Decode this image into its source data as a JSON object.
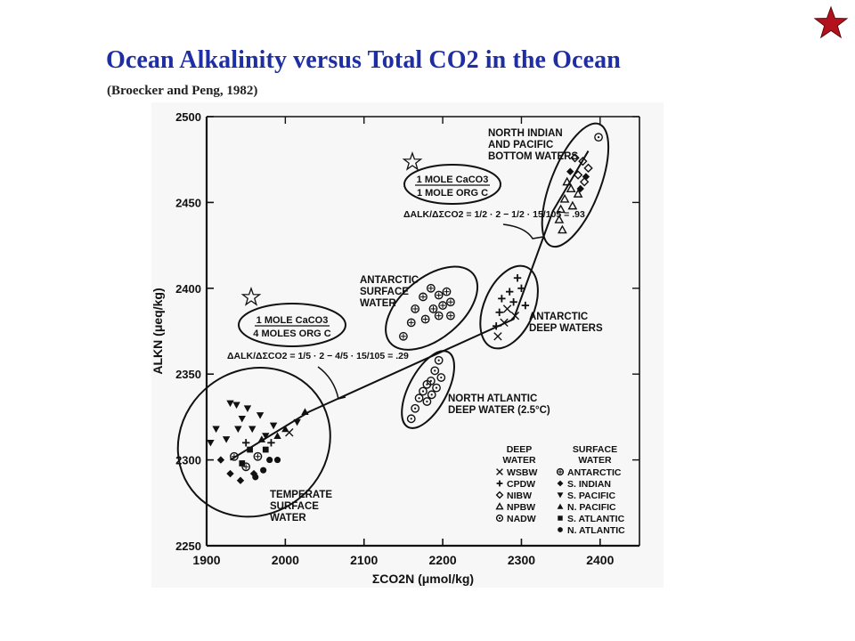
{
  "slide": {
    "title": "Ocean Alkalinity versus Total CO2 in the Ocean",
    "subtitle": "(Broecker and Peng, 1982)",
    "star_color": "#b3121c",
    "title_color": "#1f2fa3"
  },
  "chart_data": {
    "type": "scatter",
    "xlabel": "ΣCO2N (μmol/kg)",
    "ylabel": "ALKN (μeq/kg)",
    "xlim": [
      1900,
      2450
    ],
    "ylim": [
      2250,
      2500
    ],
    "x_ticks": [
      1900,
      2000,
      2100,
      2200,
      2300,
      2400
    ],
    "y_ticks": [
      2250,
      2300,
      2350,
      2400,
      2450,
      2500
    ],
    "trend_line": [
      [
        1930,
        2300
      ],
      [
        2030,
        2328
      ],
      [
        2290,
        2382
      ],
      [
        2340,
        2445
      ],
      [
        2385,
        2480
      ]
    ],
    "groups": [
      {
        "name": "TEMPERATE SURFACE WATER",
        "label_lines": [
          "TEMPERATE",
          "SURFACE",
          "WATER"
        ],
        "points": [
          {
            "x": 1905,
            "y": 2310,
            "s": "S.PACIFIC"
          },
          {
            "x": 1912,
            "y": 2318,
            "s": "S.PACIFIC"
          },
          {
            "x": 1930,
            "y": 2333,
            "s": "S.PACIFIC"
          },
          {
            "x": 1938,
            "y": 2332,
            "s": "S.PACIFIC"
          },
          {
            "x": 1945,
            "y": 2324,
            "s": "S.PACIFIC"
          },
          {
            "x": 1952,
            "y": 2330,
            "s": "S.PACIFIC"
          },
          {
            "x": 1958,
            "y": 2318,
            "s": "S.PACIFIC"
          },
          {
            "x": 1968,
            "y": 2326,
            "s": "S.PACIFIC"
          },
          {
            "x": 1975,
            "y": 2314,
            "s": "S.PACIFIC"
          },
          {
            "x": 1925,
            "y": 2312,
            "s": "S.PACIFIC"
          },
          {
            "x": 1940,
            "y": 2318,
            "s": "S.PACIFIC"
          },
          {
            "x": 1985,
            "y": 2320,
            "s": "S.PACIFIC"
          },
          {
            "x": 2015,
            "y": 2322,
            "s": "S.PACIFIC"
          },
          {
            "x": 1918,
            "y": 2300,
            "s": "S.INDIAN"
          },
          {
            "x": 1930,
            "y": 2292,
            "s": "S.INDIAN"
          },
          {
            "x": 1943,
            "y": 2288,
            "s": "S.INDIAN"
          },
          {
            "x": 1960,
            "y": 2292,
            "s": "S.INDIAN"
          },
          {
            "x": 1950,
            "y": 2296,
            "s": "ANTARCTIC"
          },
          {
            "x": 1965,
            "y": 2302,
            "s": "ANTARCTIC"
          },
          {
            "x": 1935,
            "y": 2302,
            "s": "ANTARCTIC"
          },
          {
            "x": 1980,
            "y": 2300,
            "s": "N.ATLANTIC"
          },
          {
            "x": 1972,
            "y": 2294,
            "s": "N.ATLANTIC"
          },
          {
            "x": 1990,
            "y": 2300,
            "s": "N.ATLANTIC"
          },
          {
            "x": 1962,
            "y": 2290,
            "s": "N.ATLANTIC"
          },
          {
            "x": 1955,
            "y": 2306,
            "s": "S.ATLANTIC"
          },
          {
            "x": 1975,
            "y": 2306,
            "s": "S.ATLANTIC"
          },
          {
            "x": 1945,
            "y": 2298,
            "s": "S.ATLANTIC"
          },
          {
            "x": 1990,
            "y": 2314,
            "s": "N.PACIFIC"
          },
          {
            "x": 2000,
            "y": 2318,
            "s": "N.PACIFIC"
          },
          {
            "x": 2025,
            "y": 2328,
            "s": "N.PACIFIC"
          },
          {
            "x": 1970,
            "y": 2312,
            "s": "N.PACIFIC"
          },
          {
            "x": 1982,
            "y": 2310,
            "s": "CPDW"
          },
          {
            "x": 1950,
            "y": 2310,
            "s": "CPDW"
          },
          {
            "x": 2005,
            "y": 2316,
            "s": "WSBW"
          }
        ]
      },
      {
        "name": "ANTARCTIC SURFACE WATER",
        "label_lines": [
          "ANTARCTIC",
          "SURFACE",
          "WATER"
        ],
        "points": [
          {
            "x": 2175,
            "y": 2395,
            "s": "ANTARCTIC"
          },
          {
            "x": 2185,
            "y": 2400,
            "s": "ANTARCTIC"
          },
          {
            "x": 2195,
            "y": 2396,
            "s": "ANTARCTIC"
          },
          {
            "x": 2205,
            "y": 2398,
            "s": "ANTARCTIC"
          },
          {
            "x": 2200,
            "y": 2390,
            "s": "ANTARCTIC"
          },
          {
            "x": 2188,
            "y": 2388,
            "s": "ANTARCTIC"
          },
          {
            "x": 2210,
            "y": 2392,
            "s": "ANTARCTIC"
          },
          {
            "x": 2165,
            "y": 2388,
            "s": "ANTARCTIC"
          },
          {
            "x": 2195,
            "y": 2384,
            "s": "ANTARCTIC"
          },
          {
            "x": 2160,
            "y": 2380,
            "s": "ANTARCTIC"
          },
          {
            "x": 2178,
            "y": 2382,
            "s": "ANTARCTIC"
          },
          {
            "x": 2210,
            "y": 2384,
            "s": "ANTARCTIC"
          },
          {
            "x": 2150,
            "y": 2372,
            "s": "ANTARCTIC"
          }
        ]
      },
      {
        "name": "NORTH ATLANTIC DEEP WATER (2.5°C)",
        "label_lines": [
          "NORTH ATLANTIC",
          "DEEP WATER (2.5°C)"
        ],
        "points": [
          {
            "x": 2195,
            "y": 2358,
            "s": "NADW"
          },
          {
            "x": 2190,
            "y": 2352,
            "s": "NADW"
          },
          {
            "x": 2198,
            "y": 2348,
            "s": "NADW"
          },
          {
            "x": 2185,
            "y": 2346,
            "s": "NADW"
          },
          {
            "x": 2192,
            "y": 2342,
            "s": "NADW"
          },
          {
            "x": 2180,
            "y": 2344,
            "s": "NADW"
          },
          {
            "x": 2186,
            "y": 2338,
            "s": "NADW"
          },
          {
            "x": 2175,
            "y": 2340,
            "s": "NADW"
          },
          {
            "x": 2180,
            "y": 2334,
            "s": "NADW"
          },
          {
            "x": 2170,
            "y": 2336,
            "s": "NADW"
          },
          {
            "x": 2165,
            "y": 2330,
            "s": "NADW"
          },
          {
            "x": 2160,
            "y": 2324,
            "s": "NADW"
          }
        ]
      },
      {
        "name": "ANTARCTIC DEEP WATERS",
        "label_lines": [
          "ANTARCTIC",
          "DEEP WATERS"
        ],
        "points": [
          {
            "x": 2295,
            "y": 2406,
            "s": "CPDW"
          },
          {
            "x": 2285,
            "y": 2398,
            "s": "CPDW"
          },
          {
            "x": 2300,
            "y": 2400,
            "s": "CPDW"
          },
          {
            "x": 2275,
            "y": 2394,
            "s": "CPDW"
          },
          {
            "x": 2290,
            "y": 2392,
            "s": "CPDW"
          },
          {
            "x": 2305,
            "y": 2390,
            "s": "CPDW"
          },
          {
            "x": 2272,
            "y": 2386,
            "s": "CPDW"
          },
          {
            "x": 2268,
            "y": 2378,
            "s": "CPDW"
          },
          {
            "x": 2282,
            "y": 2388,
            "s": "WSBW"
          },
          {
            "x": 2278,
            "y": 2380,
            "s": "WSBW"
          },
          {
            "x": 2292,
            "y": 2384,
            "s": "WSBW"
          },
          {
            "x": 2270,
            "y": 2372,
            "s": "WSBW"
          }
        ]
      },
      {
        "name": "NORTH INDIAN AND PACIFIC BOTTOM WATERS",
        "label_lines": [
          "NORTH INDIAN",
          "AND PACIFIC",
          "BOTTOM WATERS"
        ],
        "points": [
          {
            "x": 2398,
            "y": 2488,
            "s": "NADW"
          },
          {
            "x": 2378,
            "y": 2474,
            "s": "NIBW"
          },
          {
            "x": 2385,
            "y": 2470,
            "s": "NIBW"
          },
          {
            "x": 2372,
            "y": 2466,
            "s": "NIBW"
          },
          {
            "x": 2380,
            "y": 2462,
            "s": "NIBW"
          },
          {
            "x": 2368,
            "y": 2476,
            "s": "NIBW"
          },
          {
            "x": 2363,
            "y": 2458,
            "s": "NPBW"
          },
          {
            "x": 2372,
            "y": 2455,
            "s": "NPBW"
          },
          {
            "x": 2355,
            "y": 2452,
            "s": "NPBW"
          },
          {
            "x": 2365,
            "y": 2448,
            "s": "NPBW"
          },
          {
            "x": 2350,
            "y": 2446,
            "s": "NPBW"
          },
          {
            "x": 2358,
            "y": 2462,
            "s": "NPBW"
          },
          {
            "x": 2348,
            "y": 2440,
            "s": "NPBW"
          },
          {
            "x": 2352,
            "y": 2434,
            "s": "NPBW"
          },
          {
            "x": 2375,
            "y": 2458,
            "s": "S.INDIAN"
          },
          {
            "x": 2382,
            "y": 2465,
            "s": "S.INDIAN"
          },
          {
            "x": 2362,
            "y": 2468,
            "s": "S.INDIAN"
          }
        ]
      }
    ],
    "annotations": [
      {
        "name": "upper-ratio",
        "box_lines": [
          "1 MOLE CaCO3",
          "1 MOLE ORG C"
        ],
        "equation": "ΔALK/ΔΣCO2 = 1/2 · 2 − 1/2 · 15/105 = .93"
      },
      {
        "name": "lower-ratio",
        "box_lines": [
          "1 MOLE CaCO3",
          "4 MOLES ORG C"
        ],
        "equation": "ΔALK/ΔΣCO2 = 1/5 · 2 − 4/5 · 15/105 = .29"
      }
    ],
    "legend": {
      "placement": "bottom-right",
      "deep_header": [
        "DEEP",
        "WATER"
      ],
      "surface_header": [
        "SURFACE",
        "WATER"
      ],
      "deep": [
        {
          "symbol": "x",
          "label": "WSBW"
        },
        {
          "symbol": "+",
          "label": "CPDW"
        },
        {
          "symbol": "diamond-open",
          "label": "NIBW"
        },
        {
          "symbol": "triangle-open",
          "label": "NPBW"
        },
        {
          "symbol": "circle-dot",
          "label": "NADW"
        }
      ],
      "surface": [
        {
          "symbol": "circle-cross",
          "label": "ANTARCTIC"
        },
        {
          "symbol": "diamond",
          "label": "S. INDIAN"
        },
        {
          "symbol": "triangle-down",
          "label": "S. PACIFIC"
        },
        {
          "symbol": "triangle-up",
          "label": "N. PACIFIC"
        },
        {
          "symbol": "square",
          "label": "S. ATLANTIC"
        },
        {
          "symbol": "circle",
          "label": "N. ATLANTIC"
        }
      ]
    }
  }
}
